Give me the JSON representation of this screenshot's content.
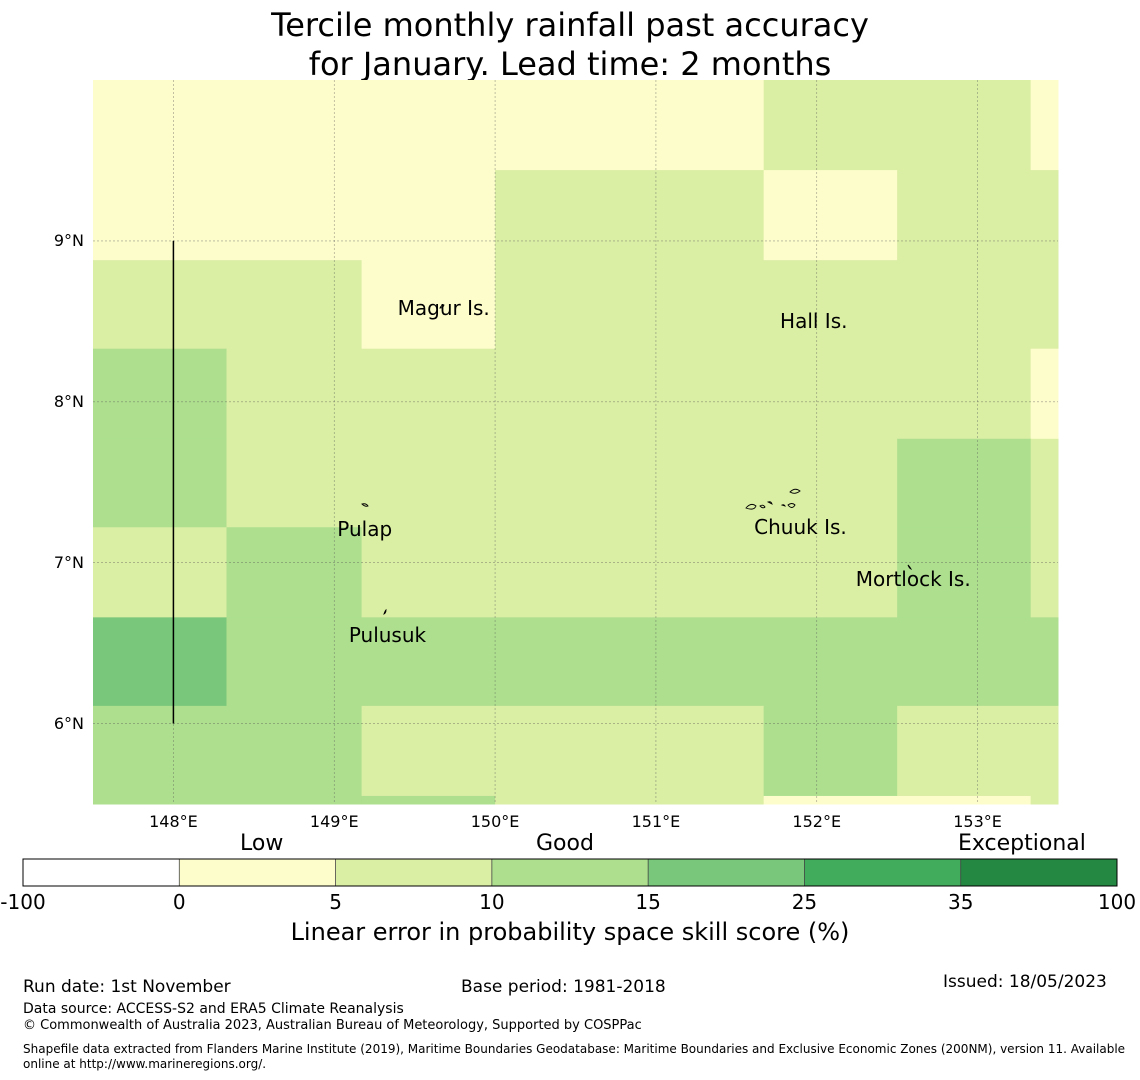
{
  "title": {
    "line1": "Tercile monthly rainfall past accuracy",
    "line2": "for January. Lead time: 2 months"
  },
  "map": {
    "lon_range": [
      147.5,
      153.5
    ],
    "lat_range": [
      5.5,
      10.0
    ],
    "lon_ticks": [
      {
        "value": 148,
        "label": "148°E"
      },
      {
        "value": 149,
        "label": "149°E"
      },
      {
        "value": 150,
        "label": "150°E"
      },
      {
        "value": 151,
        "label": "151°E"
      },
      {
        "value": 152,
        "label": "152°E"
      },
      {
        "value": 153,
        "label": "153°E"
      }
    ],
    "lat_ticks": [
      {
        "value": 9,
        "label": "9°N"
      },
      {
        "value": 8,
        "label": "8°N"
      },
      {
        "value": 7,
        "label": "7°N"
      },
      {
        "value": 6,
        "label": "6°N"
      }
    ],
    "boundary_line": {
      "lon": 148.0,
      "lat_from": 6.0,
      "lat_to": 9.0
    },
    "places": [
      {
        "name": "Magur Is.",
        "lon": 149.68,
        "lat": 8.58
      },
      {
        "name": "Hall Is.",
        "lon": 151.98,
        "lat": 8.5
      },
      {
        "name": "Pulap",
        "lon": 149.19,
        "lat": 7.21
      },
      {
        "name": "Chuuk Is.",
        "lon": 151.9,
        "lat": 7.22
      },
      {
        "name": "Mortlock Is.",
        "lon": 152.6,
        "lat": 6.9
      },
      {
        "name": "Pulusuk",
        "lon": 149.33,
        "lat": 6.55
      }
    ]
  },
  "chart_data": {
    "type": "heatmap",
    "title": "Tercile monthly rainfall past accuracy for January. Lead time: 2 months",
    "value_label": "Linear error in probability space skill score (%)",
    "cells": [
      {
        "lon": [
          147.5,
          149.17
        ],
        "lat": [
          9.44,
          10.0
        ],
        "cls": 1
      },
      {
        "lon": [
          149.17,
          150.0
        ],
        "lat": [
          9.44,
          10.0
        ],
        "cls": 1
      },
      {
        "lon": [
          150.0,
          151.67
        ],
        "lat": [
          9.44,
          10.0
        ],
        "cls": 1
      },
      {
        "lon": [
          151.67,
          153.33
        ],
        "lat": [
          9.44,
          10.0
        ],
        "cls": 2
      },
      {
        "lon": [
          153.33,
          153.5
        ],
        "lat": [
          9.44,
          10.0
        ],
        "cls": 1
      },
      {
        "lon": [
          147.5,
          149.17
        ],
        "lat": [
          8.88,
          9.44
        ],
        "cls": 1
      },
      {
        "lon": [
          149.17,
          150.0
        ],
        "lat": [
          8.88,
          9.44
        ],
        "cls": 1
      },
      {
        "lon": [
          150.0,
          151.67
        ],
        "lat": [
          8.88,
          9.44
        ],
        "cls": 2
      },
      {
        "lon": [
          151.67,
          152.5
        ],
        "lat": [
          8.88,
          9.44
        ],
        "cls": 1
      },
      {
        "lon": [
          152.5,
          153.5
        ],
        "lat": [
          8.88,
          9.44
        ],
        "cls": 2
      },
      {
        "lon": [
          147.5,
          149.17
        ],
        "lat": [
          8.33,
          8.88
        ],
        "cls": 2
      },
      {
        "lon": [
          149.17,
          150.0
        ],
        "lat": [
          8.33,
          8.88
        ],
        "cls": 1
      },
      {
        "lon": [
          150.0,
          153.5
        ],
        "lat": [
          8.33,
          8.88
        ],
        "cls": 2
      },
      {
        "lon": [
          147.5,
          148.33
        ],
        "lat": [
          7.77,
          8.33
        ],
        "cls": 3
      },
      {
        "lon": [
          148.33,
          153.33
        ],
        "lat": [
          7.77,
          8.33
        ],
        "cls": 2
      },
      {
        "lon": [
          153.33,
          153.5
        ],
        "lat": [
          7.77,
          8.33
        ],
        "cls": 1
      },
      {
        "lon": [
          147.5,
          148.33
        ],
        "lat": [
          7.22,
          7.77
        ],
        "cls": 3
      },
      {
        "lon": [
          148.33,
          152.5
        ],
        "lat": [
          7.22,
          7.77
        ],
        "cls": 2
      },
      {
        "lon": [
          152.5,
          153.33
        ],
        "lat": [
          7.22,
          7.77
        ],
        "cls": 3
      },
      {
        "lon": [
          153.33,
          153.5
        ],
        "lat": [
          7.22,
          7.77
        ],
        "cls": 2
      },
      {
        "lon": [
          147.5,
          148.33
        ],
        "lat": [
          6.66,
          7.22
        ],
        "cls": 2
      },
      {
        "lon": [
          148.33,
          149.17
        ],
        "lat": [
          6.66,
          7.22
        ],
        "cls": 3
      },
      {
        "lon": [
          149.17,
          152.5
        ],
        "lat": [
          6.66,
          7.22
        ],
        "cls": 2
      },
      {
        "lon": [
          152.5,
          153.33
        ],
        "lat": [
          6.66,
          7.22
        ],
        "cls": 3
      },
      {
        "lon": [
          153.33,
          153.5
        ],
        "lat": [
          6.66,
          7.22
        ],
        "cls": 2
      },
      {
        "lon": [
          147.5,
          148.33
        ],
        "lat": [
          6.11,
          6.66
        ],
        "cls": 4
      },
      {
        "lon": [
          148.33,
          153.5
        ],
        "lat": [
          6.11,
          6.66
        ],
        "cls": 3
      },
      {
        "lon": [
          147.5,
          149.17
        ],
        "lat": [
          5.5,
          6.11
        ],
        "cls": 3
      },
      {
        "lon": [
          149.17,
          151.67
        ],
        "lat": [
          5.55,
          6.11
        ],
        "cls": 2
      },
      {
        "lon": [
          149.17,
          150.0
        ],
        "lat": [
          5.5,
          5.55
        ],
        "cls": 3
      },
      {
        "lon": [
          150.0,
          151.67
        ],
        "lat": [
          5.5,
          5.55
        ],
        "cls": 2
      },
      {
        "lon": [
          151.67,
          152.5
        ],
        "lat": [
          5.55,
          6.11
        ],
        "cls": 3
      },
      {
        "lon": [
          152.5,
          153.5
        ],
        "lat": [
          5.55,
          6.11
        ],
        "cls": 2
      },
      {
        "lon": [
          151.67,
          153.33
        ],
        "lat": [
          5.5,
          5.55
        ],
        "cls": 1
      },
      {
        "lon": [
          153.33,
          153.5
        ],
        "lat": [
          5.5,
          5.55
        ],
        "cls": 2
      }
    ],
    "colorbar": {
      "bounds": [
        -100,
        0,
        5,
        10,
        15,
        25,
        35,
        100
      ],
      "tick_labels": [
        "-100",
        "0",
        "5",
        "10",
        "15",
        "25",
        "35",
        "100"
      ],
      "colors": [
        "#ffffff",
        "#fdfdcc",
        "#daeea4",
        "#addf8e",
        "#79c77a",
        "#42ac5d",
        "#248843"
      ],
      "categories": [
        "Low",
        "Good",
        "Exceptional"
      ]
    }
  },
  "footer": {
    "run_date": "Run date: 1st November",
    "base_period": "Base period: 1981-2018",
    "issued": "Issued: 18/05/2023",
    "data_source": "Data source: ACCESS-S2 and ERA5 Climate Reanalysis",
    "copyright": "© Commonwealth of Australia 2023, Australian Bureau of Meteorology, Supported by COSPPac",
    "shapefile_line1": "Shapefile data extracted from Flanders Marine Institute (2019), Maritime Boundaries Geodatabase: Maritime Boundaries and Exclusive Economic Zones (200NM), version 11. Available",
    "shapefile_line2": "online at http://www.marineregions.org/."
  }
}
